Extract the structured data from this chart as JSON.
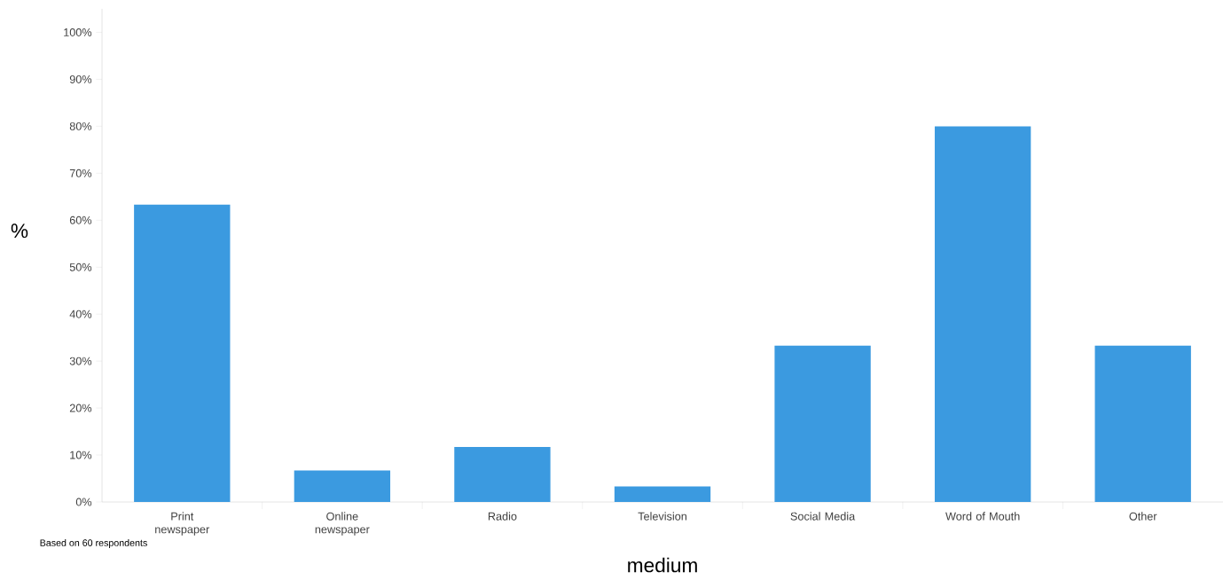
{
  "chart_data": {
    "type": "bar",
    "categories": [
      "Print newspaper",
      "Online newspaper",
      "Radio",
      "Television",
      "Social Media",
      "Word of Mouth",
      "Other"
    ],
    "values": [
      63.3,
      6.7,
      11.7,
      3.3,
      33.3,
      80,
      33.3
    ],
    "color": "#3b9ae0",
    "xlabel": "medium",
    "ylabel": "%",
    "ylim": [
      0,
      105
    ],
    "yticks": [
      {
        "value": 0,
        "label": "0%"
      },
      {
        "value": 10,
        "label": "10%"
      },
      {
        "value": 20,
        "label": "20%"
      },
      {
        "value": 30,
        "label": "30%"
      },
      {
        "value": 40,
        "label": "40%"
      },
      {
        "value": 50,
        "label": "50%"
      },
      {
        "value": 60,
        "label": "60%"
      },
      {
        "value": 70,
        "label": "70%"
      },
      {
        "value": 80,
        "label": "80%"
      },
      {
        "value": 90,
        "label": "90%"
      },
      {
        "value": 100,
        "label": "100%"
      }
    ],
    "annotations": [
      "Based on 60 respondents"
    ]
  }
}
